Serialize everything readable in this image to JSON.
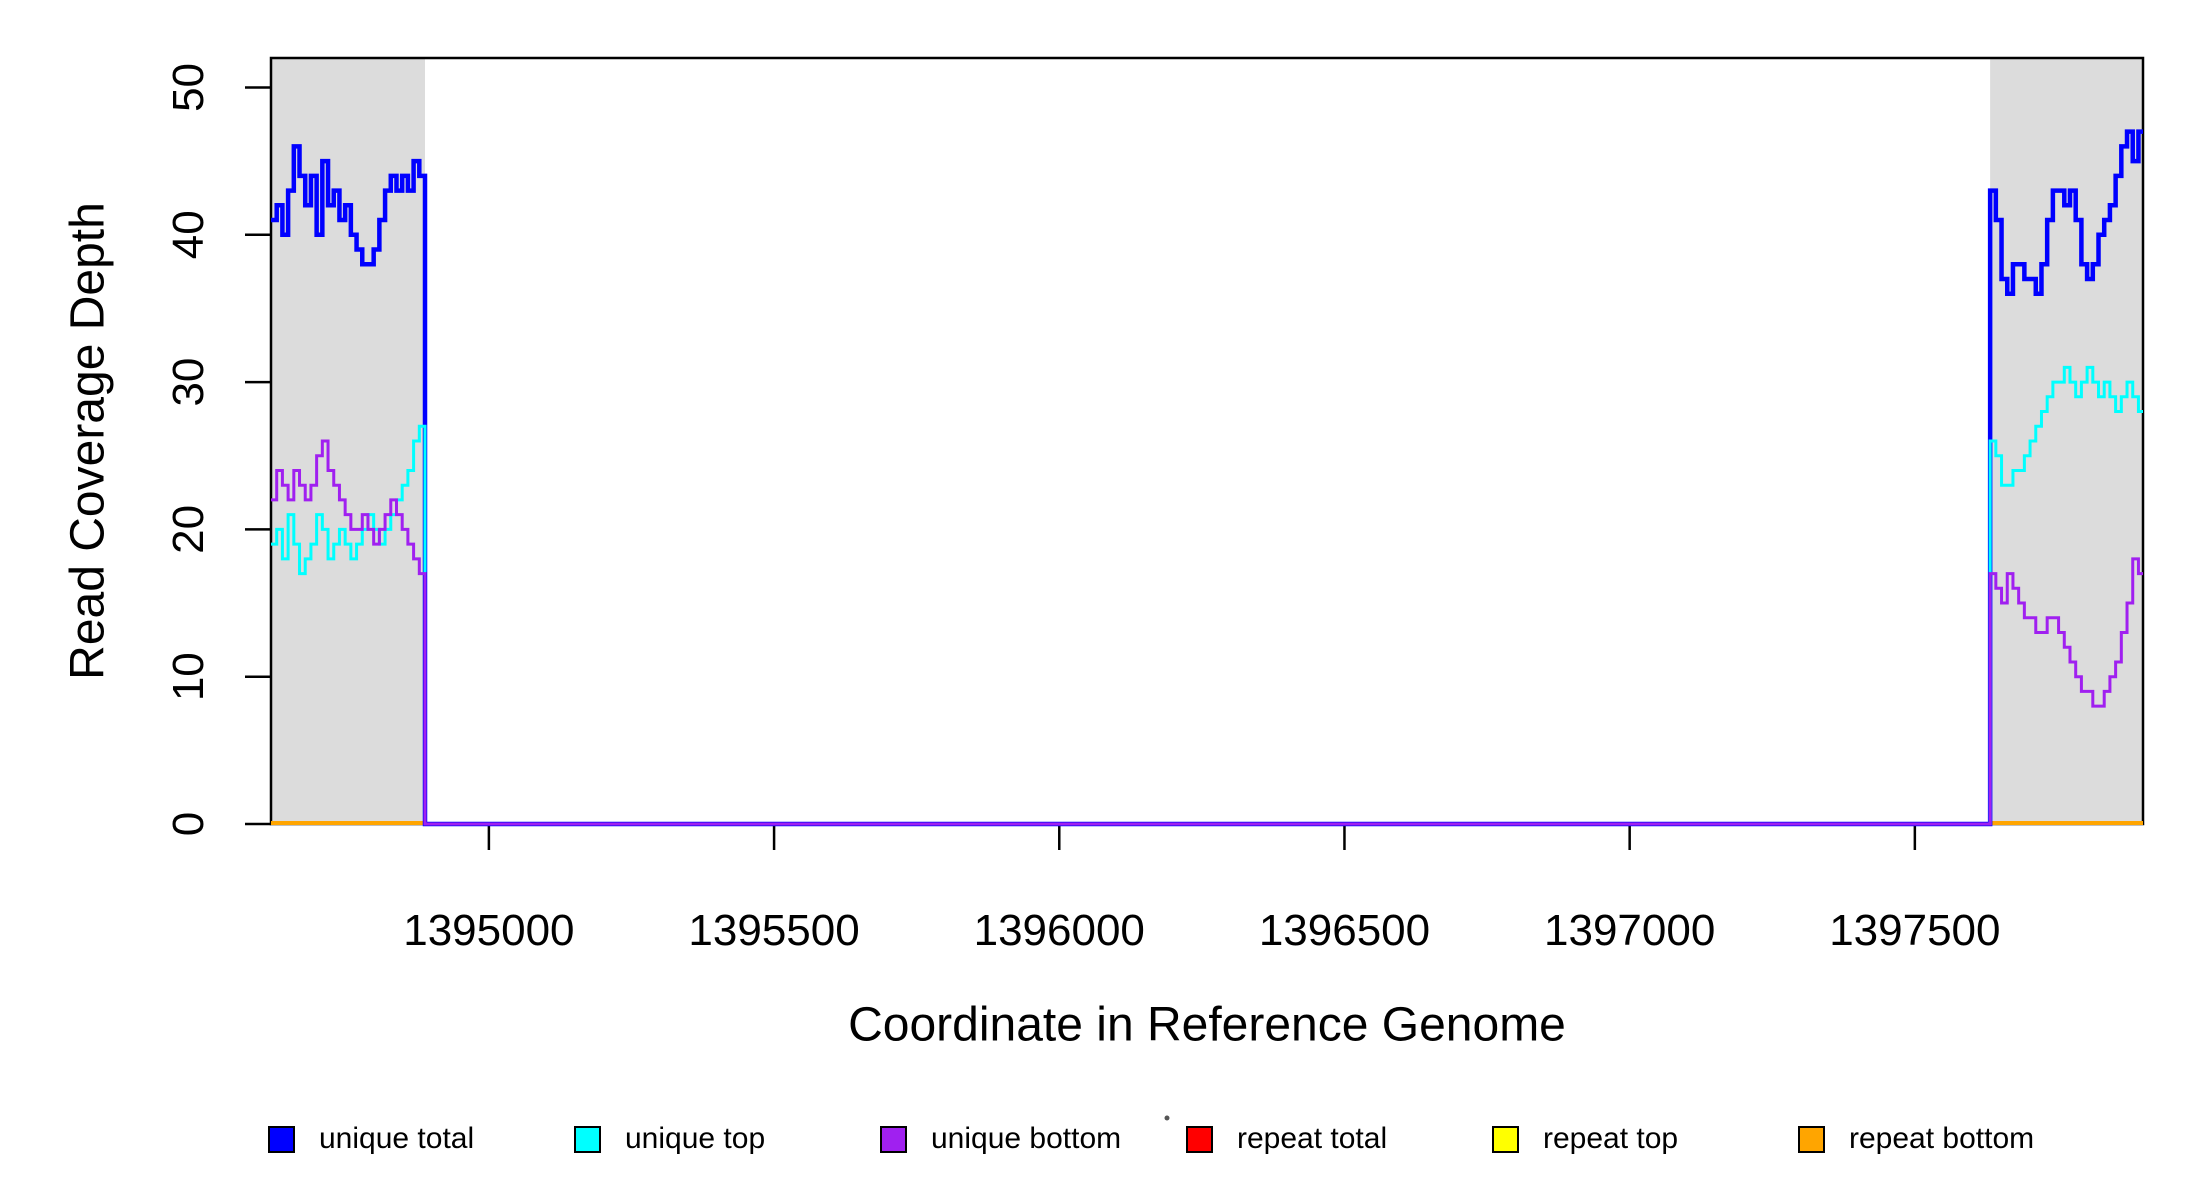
{
  "figure": {
    "ylabel": "Read Coverage Depth",
    "xlabel": "Coordinate in Reference Genome"
  },
  "chart_data": {
    "type": "line",
    "style": "step",
    "title": "",
    "xlabel": "Coordinate in Reference Genome",
    "ylabel": "Read Coverage Depth",
    "xlim": [
      1394618,
      1397900
    ],
    "ylim": [
      0,
      52
    ],
    "x_ticks": [
      1395000,
      1395500,
      1396000,
      1396500,
      1397000,
      1397500
    ],
    "y_ticks": [
      0,
      10,
      20,
      30,
      40,
      50
    ],
    "grid": false,
    "legend_position": "bottom",
    "bin_size": 10,
    "shaded_regions": {
      "color": "#DCDCDC",
      "ranges": [
        [
          1394618,
          1394888
        ],
        [
          1397632,
          1397900
        ]
      ]
    },
    "series": [
      {
        "name": "repeat total",
        "color": "#FF0000",
        "width": 4,
        "flat_value": 0,
        "regions": [
          [
            1394618,
            1394888
          ],
          [
            1397632,
            1397900
          ]
        ]
      },
      {
        "name": "repeat top",
        "color": "#FFFF00",
        "width": 4,
        "flat_value": 0,
        "regions": [
          [
            1394618,
            1394888
          ],
          [
            1397632,
            1397900
          ]
        ]
      },
      {
        "name": "repeat bottom",
        "color": "#FFA500",
        "width": 4,
        "flat_value": 0,
        "regions": [
          [
            1394618,
            1394888
          ],
          [
            1397632,
            1397900
          ]
        ]
      },
      {
        "name": "unique total",
        "color": "#0000FF",
        "width": 4.5,
        "zero_between": [
          1394888,
          1397632
        ],
        "segments": [
          {
            "x_start": 1394618,
            "bin_size": 10,
            "values": [
              41,
              42,
              40,
              43,
              46,
              44,
              42,
              44,
              40,
              45,
              42,
              43,
              41,
              42,
              40,
              39,
              38,
              38,
              39,
              41,
              43,
              44,
              43,
              44,
              43,
              45,
              44
            ]
          },
          {
            "x_start": 1397632,
            "bin_size": 10,
            "values": [
              43,
              41,
              37,
              36,
              38,
              38,
              37,
              37,
              36,
              38,
              41,
              43,
              43,
              42,
              43,
              41,
              38,
              37,
              38,
              40,
              41,
              42,
              44,
              46,
              47,
              45,
              47
            ]
          }
        ]
      },
      {
        "name": "unique top",
        "color": "#00FFFF",
        "width": 3,
        "zero_between": [
          1394888,
          1397632
        ],
        "segments": [
          {
            "x_start": 1394618,
            "bin_size": 10,
            "values": [
              19,
              20,
              18,
              21,
              19,
              17,
              18,
              19,
              21,
              20,
              18,
              19,
              20,
              19,
              18,
              19,
              20,
              21,
              20,
              19,
              20,
              21,
              22,
              23,
              24,
              26,
              27
            ]
          },
          {
            "x_start": 1397632,
            "bin_size": 10,
            "values": [
              26,
              25,
              23,
              23,
              24,
              24,
              25,
              26,
              27,
              28,
              29,
              30,
              30,
              31,
              30,
              29,
              30,
              31,
              30,
              29,
              30,
              29,
              28,
              29,
              30,
              29,
              28
            ]
          }
        ]
      },
      {
        "name": "unique bottom",
        "color": "#A020F0",
        "width": 3,
        "zero_between": [
          1394888,
          1397632
        ],
        "segments": [
          {
            "x_start": 1394618,
            "bin_size": 10,
            "values": [
              22,
              24,
              23,
              22,
              24,
              23,
              22,
              23,
              25,
              26,
              24,
              23,
              22,
              21,
              20,
              20,
              21,
              20,
              19,
              20,
              21,
              22,
              21,
              20,
              19,
              18,
              17
            ]
          },
          {
            "x_start": 1397632,
            "bin_size": 10,
            "values": [
              17,
              16,
              15,
              17,
              16,
              15,
              14,
              14,
              13,
              13,
              14,
              14,
              13,
              12,
              11,
              10,
              9,
              9,
              8,
              8,
              9,
              10,
              11,
              13,
              15,
              18,
              17
            ]
          }
        ]
      }
    ]
  },
  "legend": {
    "items": [
      {
        "label": "unique total",
        "color": "#0000FF"
      },
      {
        "label": "unique top",
        "color": "#00FFFF"
      },
      {
        "label": "unique bottom",
        "color": "#A020F0"
      },
      {
        "label": "repeat total",
        "color": "#FF0000"
      },
      {
        "label": "repeat top",
        "color": "#FFFF00"
      },
      {
        "label": "repeat bottom",
        "color": "#FFA500"
      }
    ]
  },
  "colors": {
    "background": "#FFFFFF",
    "shaded_region": "#DCDCDC",
    "axis": "#000000"
  }
}
